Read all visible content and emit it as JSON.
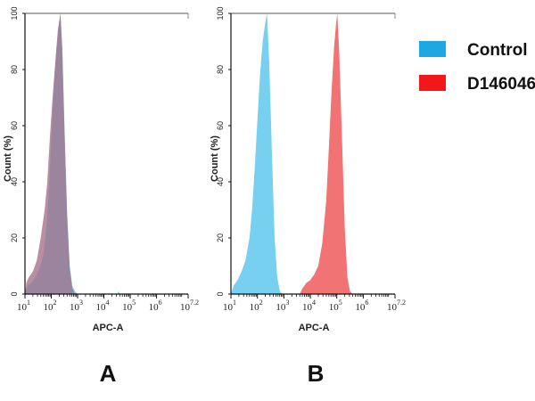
{
  "legend": {
    "placement": "right",
    "items": [
      {
        "label": "Control",
        "color": "#1ea7e1"
      },
      {
        "label": "D146046",
        "color": "#f01818"
      }
    ]
  },
  "chart_data": [
    {
      "type": "area",
      "panel_label": "A",
      "xlabel": "APC-A",
      "ylabel": "Count (%)",
      "x_scale": "log",
      "xlim": [
        10,
        15848932
      ],
      "ylim": [
        0,
        100
      ],
      "y_ticks": [
        0,
        20,
        40,
        60,
        80,
        100
      ],
      "x_ticks": [
        {
          "value": 10,
          "base": "10",
          "exp": "1"
        },
        {
          "value": 100,
          "base": "10",
          "exp": "2"
        },
        {
          "value": 1000,
          "base": "10",
          "exp": "3"
        },
        {
          "value": 10000,
          "base": "10",
          "exp": "4"
        },
        {
          "value": 100000,
          "base": "10",
          "exp": "5"
        },
        {
          "value": 1000000,
          "base": "10",
          "exp": "6"
        },
        {
          "value": 15848932,
          "base": "10",
          "exp": "7.2"
        }
      ],
      "series": [
        {
          "name": "Control",
          "points": [
            [
              1.0,
              0
            ],
            [
              1.1,
              3
            ],
            [
              1.25,
              4
            ],
            [
              1.4,
              6
            ],
            [
              1.55,
              9
            ],
            [
              1.7,
              14
            ],
            [
              1.8,
              22
            ],
            [
              1.9,
              35
            ],
            [
              2.0,
              55
            ],
            [
              2.1,
              75
            ],
            [
              2.2,
              88
            ],
            [
              2.3,
              97
            ],
            [
              2.35,
              100
            ],
            [
              2.42,
              88
            ],
            [
              2.5,
              60
            ],
            [
              2.6,
              30
            ],
            [
              2.7,
              10
            ],
            [
              2.8,
              3
            ],
            [
              2.9,
              1
            ],
            [
              3.0,
              0
            ],
            [
              4.5,
              0
            ],
            [
              4.55,
              1
            ],
            [
              4.6,
              0
            ],
            [
              7.2,
              0
            ]
          ]
        },
        {
          "name": "D146046",
          "points": [
            [
              1.0,
              0
            ],
            [
              1.05,
              4
            ],
            [
              1.15,
              6
            ],
            [
              1.3,
              8
            ],
            [
              1.45,
              12
            ],
            [
              1.6,
              20
            ],
            [
              1.75,
              30
            ],
            [
              1.85,
              40
            ],
            [
              1.95,
              56
            ],
            [
              2.05,
              70
            ],
            [
              2.15,
              82
            ],
            [
              2.25,
              94
            ],
            [
              2.35,
              100
            ],
            [
              2.42,
              86
            ],
            [
              2.5,
              58
            ],
            [
              2.6,
              28
            ],
            [
              2.7,
              9
            ],
            [
              2.8,
              2
            ],
            [
              2.9,
              0
            ],
            [
              7.2,
              0
            ]
          ]
        }
      ]
    },
    {
      "type": "area",
      "panel_label": "B",
      "xlabel": "APC-A",
      "ylabel": "Count (%)",
      "x_scale": "log",
      "xlim": [
        10,
        15848932
      ],
      "ylim": [
        0,
        100
      ],
      "y_ticks": [
        0,
        20,
        40,
        60,
        80,
        100
      ],
      "x_ticks": [
        {
          "value": 10,
          "base": "10",
          "exp": "1"
        },
        {
          "value": 100,
          "base": "10",
          "exp": "2"
        },
        {
          "value": 1000,
          "base": "10",
          "exp": "3"
        },
        {
          "value": 10000,
          "base": "10",
          "exp": "4"
        },
        {
          "value": 100000,
          "base": "10",
          "exp": "5"
        },
        {
          "value": 1000000,
          "base": "10",
          "exp": "6"
        },
        {
          "value": 15848932,
          "base": "10",
          "exp": "7.2"
        }
      ],
      "series": [
        {
          "name": "Control",
          "points": [
            [
              1.0,
              0
            ],
            [
              1.1,
              3
            ],
            [
              1.25,
              5
            ],
            [
              1.4,
              8
            ],
            [
              1.55,
              12
            ],
            [
              1.7,
              20
            ],
            [
              1.8,
              30
            ],
            [
              1.9,
              45
            ],
            [
              2.0,
              62
            ],
            [
              2.1,
              78
            ],
            [
              2.2,
              90
            ],
            [
              2.3,
              97
            ],
            [
              2.36,
              100
            ],
            [
              2.45,
              82
            ],
            [
              2.55,
              50
            ],
            [
              2.65,
              20
            ],
            [
              2.75,
              6
            ],
            [
              2.85,
              1
            ],
            [
              2.95,
              0
            ],
            [
              7.2,
              0
            ]
          ]
        },
        {
          "name": "D146046",
          "points": [
            [
              1.0,
              0
            ],
            [
              3.6,
              0
            ],
            [
              3.7,
              2
            ],
            [
              3.85,
              4
            ],
            [
              4.0,
              5
            ],
            [
              4.15,
              7
            ],
            [
              4.3,
              10
            ],
            [
              4.45,
              18
            ],
            [
              4.6,
              33
            ],
            [
              4.7,
              52
            ],
            [
              4.8,
              72
            ],
            [
              4.9,
              88
            ],
            [
              4.97,
              96
            ],
            [
              5.02,
              100
            ],
            [
              5.1,
              84
            ],
            [
              5.2,
              55
            ],
            [
              5.3,
              24
            ],
            [
              5.4,
              6
            ],
            [
              5.5,
              1
            ],
            [
              5.6,
              0
            ],
            [
              7.2,
              0
            ]
          ]
        }
      ]
    }
  ]
}
